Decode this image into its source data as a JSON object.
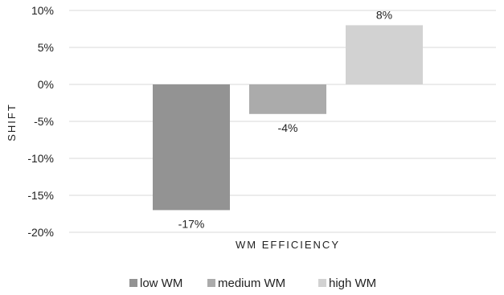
{
  "chart_data": {
    "type": "bar",
    "title": "",
    "xlabel": "WM EFFICIENCY",
    "ylabel": "SHIFT",
    "ylim": [
      -20,
      10
    ],
    "yticks": [
      10,
      5,
      0,
      -5,
      -10,
      -15,
      -20
    ],
    "ytick_labels": [
      "10%",
      "5%",
      "0%",
      "-5%",
      "-10%",
      "-15%",
      "-20%"
    ],
    "grid": true,
    "legend_position": "bottom",
    "series": [
      {
        "name": "low WM",
        "value": -17,
        "label": "-17%",
        "color": "#939393"
      },
      {
        "name": "medium WM",
        "value": -4,
        "label": "-4%",
        "color": "#ababab"
      },
      {
        "name": "high WM",
        "value": 8,
        "label": "8%",
        "color": "#d2d2d2"
      }
    ]
  }
}
